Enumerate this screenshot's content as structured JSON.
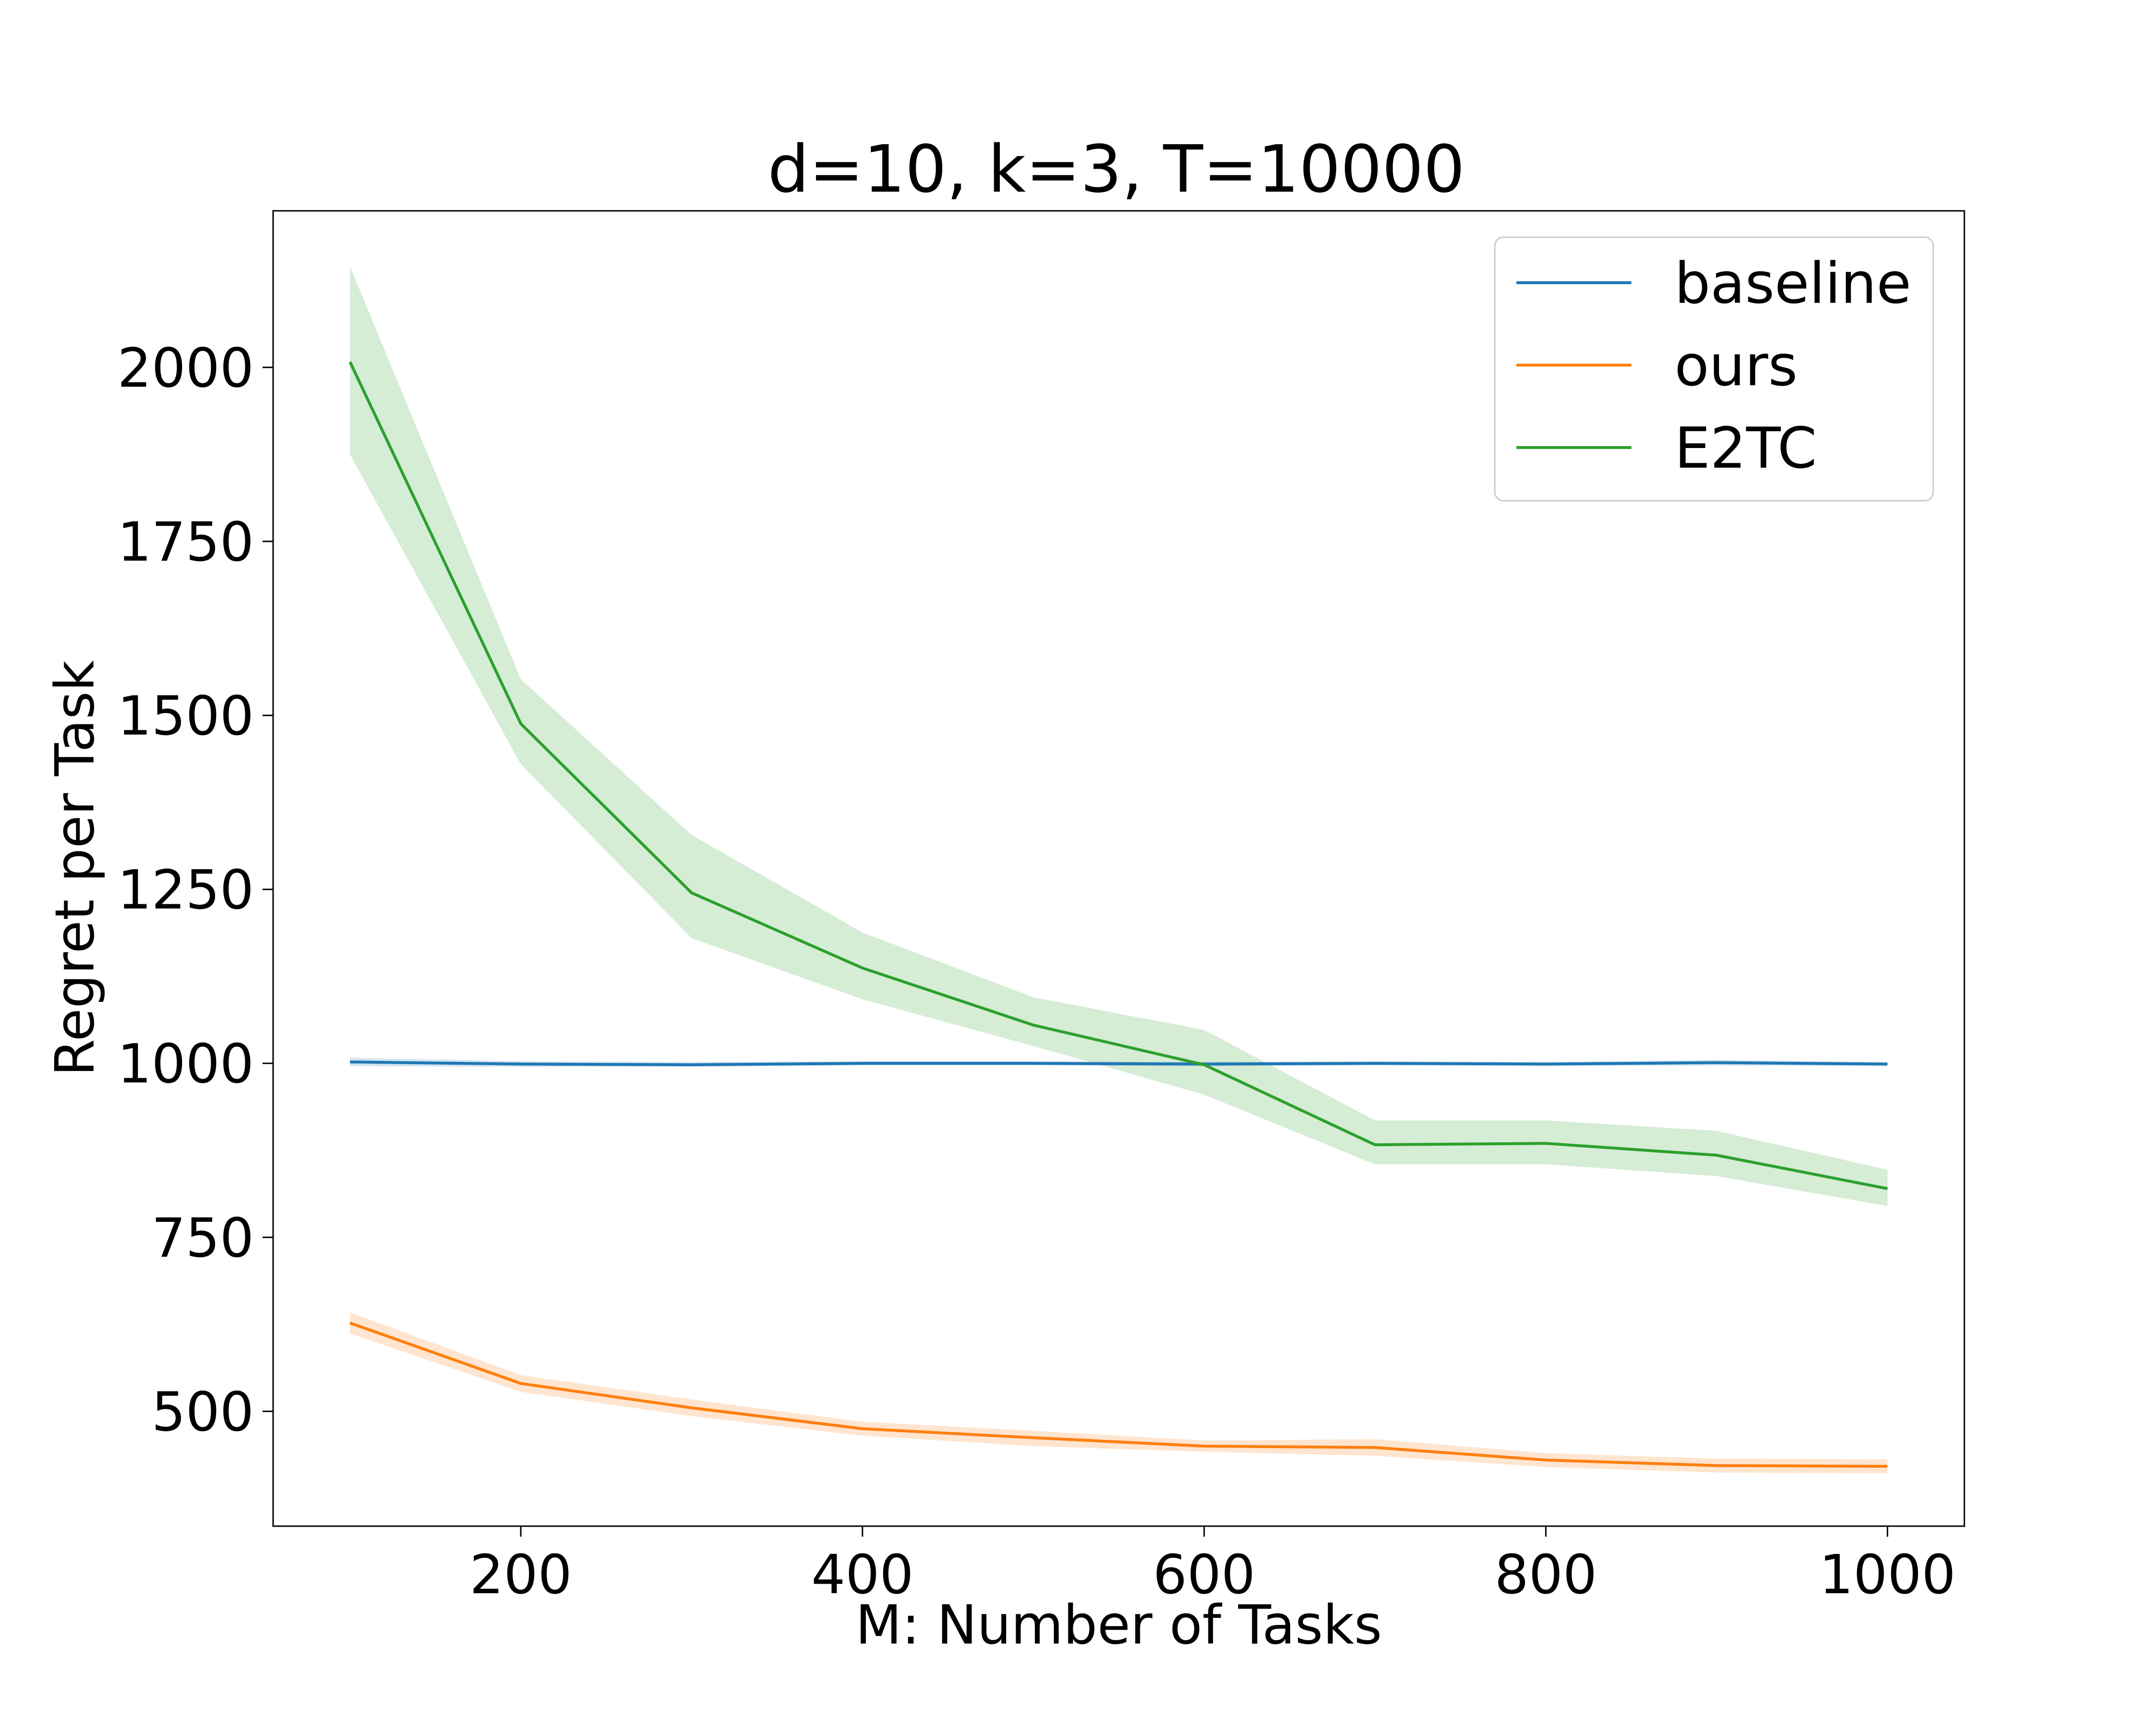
{
  "chart_data": {
    "type": "line",
    "title": "d=10, k=3, T=10000",
    "xlabel": "M: Number of Tasks",
    "ylabel": "Regret per Task",
    "x": [
      100,
      200,
      300,
      400,
      500,
      600,
      700,
      800,
      900,
      1000
    ],
    "xlim": [
      55,
      1045
    ],
    "ylim": [
      335,
      2225
    ],
    "xticks": [
      200,
      400,
      600,
      800,
      1000
    ],
    "yticks": [
      500,
      750,
      1000,
      1250,
      1500,
      1750,
      2000
    ],
    "grid": false,
    "legend_position": "top-right",
    "series": [
      {
        "name": "baseline",
        "color": "#1f77b4",
        "values": [
          1002,
          999,
          998,
          1000,
          1000,
          999,
          1000,
          999,
          1001,
          999
        ],
        "lower": [
          996,
          995,
          995,
          997,
          997,
          996,
          997,
          996,
          997,
          996
        ],
        "upper": [
          1008,
          1003,
          1002,
          1003,
          1003,
          1002,
          1003,
          1002,
          1005,
          1002
        ]
      },
      {
        "name": "ours",
        "color": "#ff7f0e",
        "values": [
          627,
          540,
          505,
          475,
          462,
          450,
          448,
          430,
          422,
          421
        ],
        "lower": [
          612,
          528,
          493,
          465,
          450,
          442,
          436,
          420,
          412,
          411
        ],
        "upper": [
          642,
          552,
          517,
          485,
          472,
          458,
          460,
          440,
          432,
          431
        ]
      },
      {
        "name": "E2TC",
        "color": "#2ca02c",
        "values": [
          2008,
          1488,
          1245,
          1137,
          1055,
          998,
          883,
          885,
          868,
          820
        ],
        "lower": [
          1875,
          1430,
          1180,
          1092,
          1025,
          955,
          855,
          855,
          838,
          795
        ],
        "upper": [
          2145,
          1552,
          1328,
          1188,
          1095,
          1048,
          918,
          918,
          903,
          847
        ]
      }
    ]
  }
}
